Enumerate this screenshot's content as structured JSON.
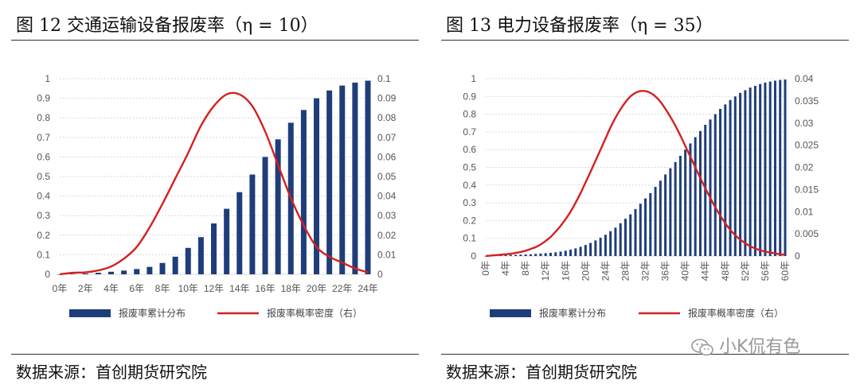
{
  "panels": [
    {
      "title": "图 12 交通运输设备报废率（η = 10）",
      "source": "数据来源：首创期货研究院",
      "chart_data": {
        "type": "bar",
        "x_labels": [
          "0年",
          "2年",
          "4年",
          "6年",
          "8年",
          "10年",
          "12年",
          "14年",
          "16年",
          "18年",
          "20年",
          "22年",
          "24年"
        ],
        "x": [
          0,
          1,
          2,
          3,
          4,
          5,
          6,
          7,
          8,
          9,
          10,
          11,
          12,
          13,
          14,
          15,
          16,
          17,
          18,
          19,
          20,
          21,
          22,
          23,
          24
        ],
        "y_left_ticks": [
          0,
          0.1,
          0.2,
          0.3,
          0.4,
          0.5,
          0.6,
          0.7,
          0.8,
          0.9,
          1
        ],
        "y_right_ticks": [
          0,
          0.01,
          0.02,
          0.03,
          0.04,
          0.05,
          0.06,
          0.07,
          0.08,
          0.09,
          0.1
        ],
        "ylim_left": [
          0,
          1
        ],
        "ylim_right": [
          0,
          0.1
        ],
        "grid": true,
        "series": [
          {
            "name": "报废率累计分布",
            "type": "bar",
            "axis": "left",
            "color": "#1F3D7A",
            "values": [
              0,
              0.002,
              0.004,
              0.008,
              0.013,
              0.019,
              0.027,
              0.038,
              0.058,
              0.09,
              0.135,
              0.19,
              0.26,
              0.335,
              0.42,
              0.51,
              0.6,
              0.69,
              0.775,
              0.84,
              0.9,
              0.94,
              0.965,
              0.98,
              0.99
            ]
          },
          {
            "name": "报废率概率密度（右）",
            "type": "line",
            "axis": "right",
            "color": "#D42020",
            "values": [
              0,
              0.0008,
              0.001,
              0.002,
              0.004,
              0.008,
              0.014,
              0.024,
              0.036,
              0.049,
              0.062,
              0.076,
              0.086,
              0.092,
              0.092,
              0.086,
              0.073,
              0.056,
              0.039,
              0.025,
              0.014,
              0.009,
              0.006,
              0.003,
              0.001
            ]
          }
        ]
      }
    },
    {
      "title": "图 13 电力设备报废率（η = 35）",
      "source": "数据来源：首创期货研究院",
      "chart_data": {
        "type": "bar",
        "x_labels": [
          "0年",
          "4年",
          "8年",
          "12年",
          "16年",
          "20年",
          "24年",
          "28年",
          "32年",
          "36年",
          "40年",
          "44年",
          "48年",
          "52年",
          "56年",
          "60年"
        ],
        "x": [
          0,
          1,
          2,
          3,
          4,
          5,
          6,
          7,
          8,
          9,
          10,
          11,
          12,
          13,
          14,
          15,
          16,
          17,
          18,
          19,
          20,
          21,
          22,
          23,
          24,
          25,
          26,
          27,
          28,
          29,
          30,
          31,
          32,
          33,
          34,
          35,
          36,
          37,
          38,
          39,
          40,
          41,
          42,
          43,
          44,
          45,
          46,
          47,
          48,
          49,
          50,
          51,
          52,
          53,
          54,
          55,
          56,
          57,
          58,
          59,
          60
        ],
        "y_left_ticks": [
          0,
          0.1,
          0.2,
          0.3,
          0.4,
          0.5,
          0.6,
          0.7,
          0.8,
          0.9,
          1
        ],
        "y_right_ticks": [
          0,
          0.005,
          0.01,
          0.015,
          0.02,
          0.025,
          0.03,
          0.035,
          0.04
        ],
        "ylim_left": [
          0,
          1
        ],
        "ylim_right": [
          0,
          0.04
        ],
        "grid": true,
        "series": [
          {
            "name": "报废率累计分布",
            "type": "bar",
            "axis": "left",
            "color": "#1F3D7A",
            "values": [
              0,
              0.002,
              0.003,
              0.004,
              0.005,
              0.006,
              0.007,
              0.008,
              0.009,
              0.01,
              0.012,
              0.014,
              0.016,
              0.018,
              0.021,
              0.025,
              0.03,
              0.036,
              0.043,
              0.052,
              0.062,
              0.074,
              0.088,
              0.103,
              0.12,
              0.14,
              0.16,
              0.185,
              0.21,
              0.235,
              0.265,
              0.295,
              0.325,
              0.355,
              0.39,
              0.425,
              0.46,
              0.495,
              0.53,
              0.565,
              0.6,
              0.635,
              0.67,
              0.705,
              0.74,
              0.77,
              0.8,
              0.83,
              0.855,
              0.88,
              0.9,
              0.92,
              0.935,
              0.95,
              0.96,
              0.97,
              0.978,
              0.984,
              0.989,
              0.993,
              0.996
            ]
          },
          {
            "name": "报废率概率密度（右）",
            "type": "line",
            "axis": "right",
            "color": "#D42020",
            "values": [
              0,
              0.0001,
              0.0002,
              0.0003,
              0.0004,
              0.0005,
              0.0007,
              0.0009,
              0.0012,
              0.0016,
              0.002,
              0.0026,
              0.0034,
              0.0043,
              0.0055,
              0.0068,
              0.0083,
              0.01,
              0.012,
              0.0142,
              0.0166,
              0.019,
              0.0215,
              0.024,
              0.0265,
              0.029,
              0.0312,
              0.0331,
              0.0347,
              0.036,
              0.0368,
              0.0372,
              0.0372,
              0.0368,
              0.036,
              0.0348,
              0.0332,
              0.0314,
              0.0294,
              0.0272,
              0.0248,
              0.0224,
              0.02,
              0.0176,
              0.0153,
              0.0131,
              0.011,
              0.0091,
              0.0074,
              0.0059,
              0.0047,
              0.0037,
              0.0029,
              0.0022,
              0.0017,
              0.0013,
              0.001,
              0.0008,
              0.0006,
              0.0004,
              0.0003
            ]
          }
        ]
      }
    }
  ],
  "legend": {
    "bar_label": "报废率累计分布",
    "line_label": "报废率概率密度（右）"
  },
  "watermark": {
    "text": "小K侃有色",
    "icon": "wechat-icon"
  }
}
